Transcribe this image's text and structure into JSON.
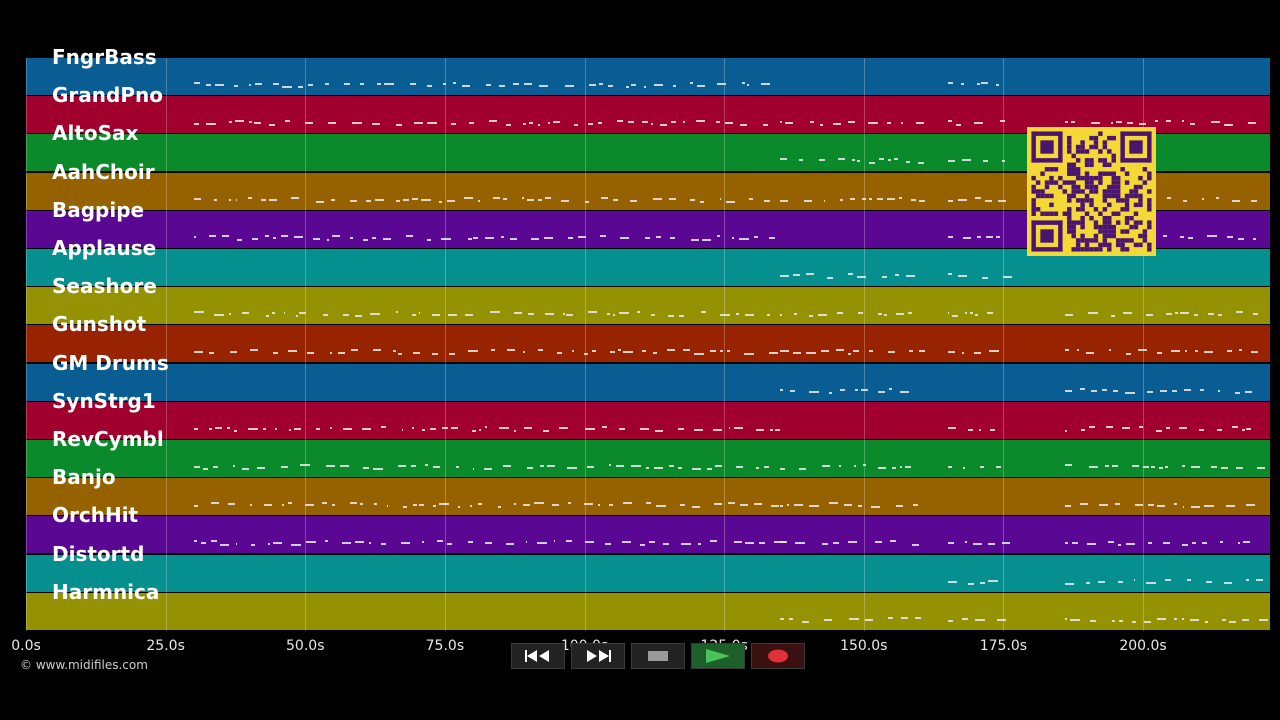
{
  "tracks": [
    {
      "name": "FngrBass",
      "color": "#0a5d93"
    },
    {
      "name": "GrandPno",
      "color": "#a1002e"
    },
    {
      "name": "AltoSax",
      "color": "#0a8a2b"
    },
    {
      "name": "AahChoir",
      "color": "#966200"
    },
    {
      "name": "Bagpipe",
      "color": "#5a0893"
    },
    {
      "name": "Applause",
      "color": "#05908f"
    },
    {
      "name": "Seashore",
      "color": "#949103"
    },
    {
      "name": "Gunshot",
      "color": "#972300"
    },
    {
      "name": "GM Drums",
      "color": "#0a5d93"
    },
    {
      "name": "SynStrg1",
      "color": "#a1002e"
    },
    {
      "name": "RevCymbl",
      "color": "#0a8a2b"
    },
    {
      "name": "Banjo",
      "color": "#966200"
    },
    {
      "name": "OrchHit",
      "color": "#5a0893"
    },
    {
      "name": "Distortd",
      "color": "#05908f"
    },
    {
      "name": "Harmnica",
      "color": "#949103"
    }
  ],
  "timeline": {
    "ticks": [
      "0.0s",
      "25.0s",
      "50.0s",
      "75.0s",
      "100.0s",
      "125.0s",
      "150.0s",
      "175.0s",
      "200.0s"
    ]
  },
  "copyright": "© www.midifiles.com",
  "controls": {
    "rewind_icon": "rewind-icon",
    "fast_forward_icon": "fast-forward-icon",
    "stop_icon": "stop-icon",
    "play_icon": "play-icon",
    "record_icon": "record-icon"
  },
  "qr_icon": "qr-code-icon"
}
